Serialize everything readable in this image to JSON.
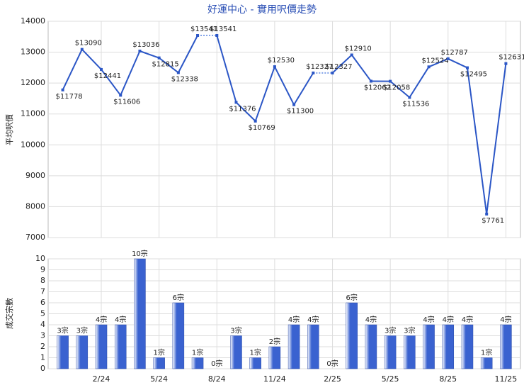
{
  "chart_data": [
    {
      "type": "line",
      "title": "好運中心 - 實用呎價走勢",
      "y_label": "平均呎價",
      "color": "#2b56c6",
      "grid": true,
      "values": [
        11778,
        13090,
        12441,
        11606,
        13036,
        12815,
        12338,
        13541,
        13541,
        11376,
        10769,
        12530,
        11300,
        12327,
        12327,
        12910,
        12062,
        12058,
        11536,
        12524,
        12787,
        12495,
        7761,
        12631
      ],
      "value_labels": [
        "$11778",
        "$13090",
        "$12441",
        "$11606",
        "$13036",
        "$12815",
        "$12338",
        "$13541",
        "$13541",
        "$11376",
        "$10769",
        "$12530",
        "$11300",
        "$12327",
        "$12327",
        "$12910",
        "$12062",
        "$12058",
        "$11536",
        "$12524",
        "$12787",
        "$12495",
        "$7761",
        "$12631"
      ],
      "ylim": [
        7000,
        14000
      ],
      "yticks": [
        7000,
        8000,
        9000,
        10000,
        11000,
        12000,
        13000,
        14000
      ]
    },
    {
      "type": "bar",
      "y_label": "成交宗數",
      "color": "#3a62d0",
      "grid": true,
      "categories": [
        null,
        null,
        "2/24",
        null,
        null,
        "5/24",
        null,
        null,
        "8/24",
        null,
        null,
        "11/24",
        null,
        null,
        "2/25",
        null,
        null,
        "5/25",
        null,
        null,
        "8/25",
        null,
        null,
        "11/25"
      ],
      "values": [
        3,
        3,
        4,
        4,
        10,
        1,
        6,
        1,
        0,
        3,
        1,
        2,
        4,
        4,
        0,
        6,
        4,
        3,
        3,
        4,
        4,
        4,
        1,
        4
      ],
      "value_labels": [
        "3宗",
        "3宗",
        "4宗",
        "4宗",
        "10宗",
        "1宗",
        "6宗",
        "1宗",
        "0宗",
        "3宗",
        "1宗",
        "2宗",
        "4宗",
        "4宗",
        "0宗",
        "6宗",
        "4宗",
        "3宗",
        "3宗",
        "4宗",
        "4宗",
        "4宗",
        "1宗",
        "4宗"
      ],
      "ylim": [
        0,
        10
      ],
      "yticks": [
        0,
        1,
        2,
        3,
        4,
        5,
        6,
        7,
        8,
        9,
        10
      ]
    }
  ]
}
